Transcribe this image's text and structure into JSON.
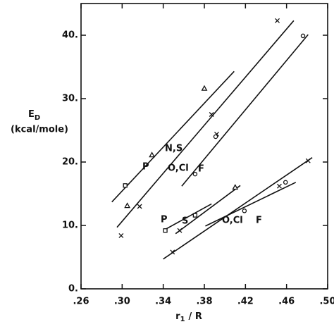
{
  "chart_data": {
    "type": "scatter",
    "ylabel": "E",
    "ylabel_sub": "D",
    "ylabel_units": "(kcal/mole)",
    "xlabel": "r",
    "xlabel_sub": "1",
    "xlabel_rest": "/ R",
    "xlim": [
      0.26,
      0.5
    ],
    "xticks": [
      {
        "value": 0.26,
        "label": ".26"
      },
      {
        "value": 0.3,
        "label": ".30"
      },
      {
        "value": 0.34,
        "label": ".34"
      },
      {
        "value": 0.38,
        "label": ".38"
      },
      {
        "value": 0.42,
        "label": ".42"
      },
      {
        "value": 0.46,
        "label": ".46"
      },
      {
        "value": 0.5,
        "label": ".50"
      }
    ],
    "ylim": [
      0,
      45
    ],
    "yticks": [
      {
        "value": 0,
        "label": "0."
      },
      {
        "value": 10,
        "label": "10."
      },
      {
        "value": 20,
        "label": "20."
      },
      {
        "value": 30,
        "label": "30."
      },
      {
        "value": 40,
        "label": "40."
      }
    ],
    "color": "#111111",
    "series": [
      {
        "marker": "square",
        "x": [
          0.303,
          0.342,
          0.371
        ],
        "y": [
          16.3,
          9.2,
          11.6
        ]
      },
      {
        "marker": "triangle",
        "x": [
          0.305,
          0.329,
          0.38,
          0.41
        ],
        "y": [
          13.1,
          21.1,
          31.6,
          16.0
        ]
      },
      {
        "marker": "cross",
        "x": [
          0.299,
          0.317,
          0.387,
          0.392,
          0.451,
          0.356,
          0.349,
          0.453,
          0.481
        ],
        "y": [
          8.4,
          13.0,
          27.5,
          24.4,
          42.3,
          9.2,
          5.8,
          16.2,
          20.2
        ]
      },
      {
        "marker": "circle",
        "x": [
          0.391,
          0.476,
          0.371,
          0.419,
          0.459
        ],
        "y": [
          24.0,
          39.9,
          18.1,
          12.3,
          16.8
        ]
      }
    ],
    "lines": [
      {
        "x": [
          0.29,
          0.409
        ],
        "y": [
          13.7,
          34.3
        ]
      },
      {
        "x": [
          0.295,
          0.467
        ],
        "y": [
          9.7,
          42.3
        ]
      },
      {
        "x": [
          0.358,
          0.481
        ],
        "y": [
          16.2,
          40.1
        ]
      },
      {
        "x": [
          0.34,
          0.387
        ],
        "y": [
          9.2,
          13.4
        ]
      },
      {
        "x": [
          0.352,
          0.415
        ],
        "y": [
          8.7,
          16.3
        ]
      },
      {
        "x": [
          0.34,
          0.485
        ],
        "y": [
          4.7,
          20.7
        ]
      },
      {
        "x": [
          0.381,
          0.469
        ],
        "y": [
          9.9,
          16.8
        ]
      }
    ],
    "annotations": [
      "P",
      "N,S",
      "O,Cl",
      "F",
      "P",
      "S",
      "O,Cl",
      "F"
    ]
  }
}
